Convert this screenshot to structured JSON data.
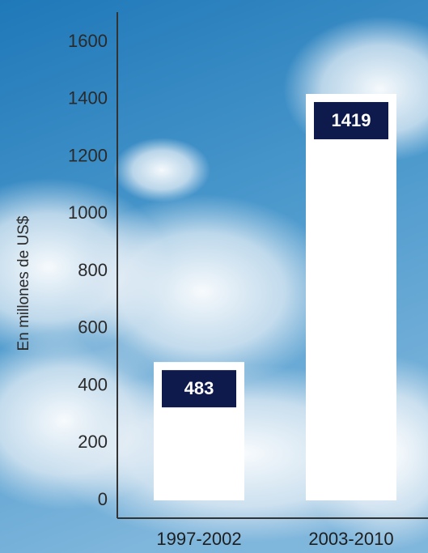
{
  "chart_data": {
    "type": "bar",
    "y_axis_label": "En millones de US$",
    "categories": [
      "1997-2002",
      "2003-2010"
    ],
    "values": [
      483,
      1419
    ],
    "color": "#ffffff",
    "label_box_color": "#0e1a4b",
    "ylim": [
      0,
      1700
    ],
    "yticks": [
      0,
      200,
      400,
      600,
      800,
      1000,
      1200,
      1400,
      1600
    ],
    "grid": false
  }
}
